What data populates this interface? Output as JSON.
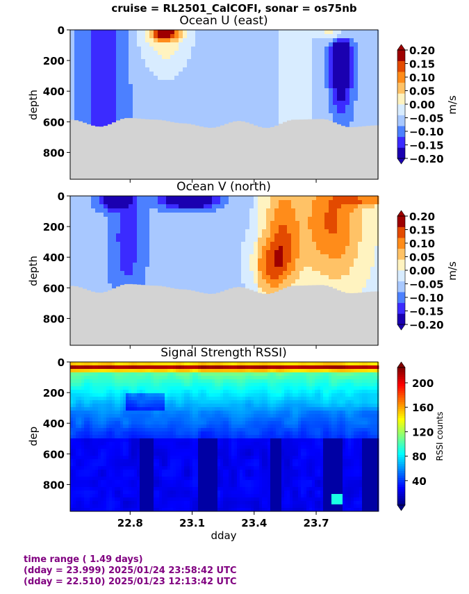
{
  "suptitle": "cruise = RL2501_CalCOFI,  sonar = os75nb",
  "footer": {
    "line1": "time range ( 1.49 days)",
    "line2": "(dday = 23.999) 2025/01/24 23:58:42 UTC",
    "line3": "(dday = 22.510) 2025/01/23 12:13:42 UTC"
  },
  "chart_data": [
    {
      "type": "heatmap",
      "title": "Ocean U (east)",
      "ylabel": "depth",
      "xlabel": "",
      "x_range": [
        22.51,
        23.999
      ],
      "y_range": [
        975,
        0
      ],
      "y_ticks": [
        "0",
        "200",
        "400",
        "600",
        "800"
      ],
      "colorbar": {
        "label": "m/s",
        "range": [
          -0.2,
          0.2
        ],
        "ticks": [
          "0.20",
          "0.15",
          "0.10",
          "0.05",
          "0.00",
          "−0.05",
          "−0.10",
          "−0.15",
          "−0.20"
        ],
        "levels": [
          "#1a00b0",
          "#3b2bff",
          "#4c80ff",
          "#a8c8ff",
          "#d8ecff",
          "#fff3c0",
          "#ffc266",
          "#ff8c1a",
          "#e34a00",
          "#9e0000"
        ]
      },
      "bottom_fill_color": "#d3d3d3",
      "bottom_depth_approx": 640
    },
    {
      "type": "heatmap",
      "title": "Ocean V (north)",
      "ylabel": "depth",
      "xlabel": "",
      "x_range": [
        22.51,
        23.999
      ],
      "y_range": [
        975,
        0
      ],
      "y_ticks": [
        "0",
        "200",
        "400",
        "600",
        "800"
      ],
      "colorbar": {
        "label": "m/s",
        "range": [
          -0.2,
          0.2
        ],
        "ticks": [
          "0.20",
          "0.15",
          "0.10",
          "0.05",
          "0.00",
          "−0.05",
          "−0.10",
          "−0.15",
          "−0.20"
        ],
        "levels": [
          "#1a00b0",
          "#3b2bff",
          "#4c80ff",
          "#a8c8ff",
          "#d8ecff",
          "#fff3c0",
          "#ffc266",
          "#ff8c1a",
          "#e34a00",
          "#9e0000"
        ]
      },
      "bottom_fill_color": "#d3d3d3",
      "bottom_depth_approx": 640
    },
    {
      "type": "heatmap",
      "title": "Signal Strength RSSI)",
      "ylabel": "dep",
      "xlabel": "dday",
      "x_range": [
        22.51,
        23.999
      ],
      "y_range": [
        975,
        0
      ],
      "y_ticks": [
        "0",
        "200",
        "400",
        "600",
        "800"
      ],
      "x_ticks": [
        "22.8",
        "23.1",
        "23.4",
        "23.7"
      ],
      "x_tick_values": [
        22.8,
        23.1,
        23.4,
        23.7
      ],
      "colorbar": {
        "label": "RSSI counts",
        "range": [
          0,
          225
        ],
        "ticks": [
          "200",
          "160",
          "120",
          "80",
          "40"
        ],
        "tick_values": [
          200,
          160,
          120,
          80,
          40
        ]
      }
    }
  ]
}
